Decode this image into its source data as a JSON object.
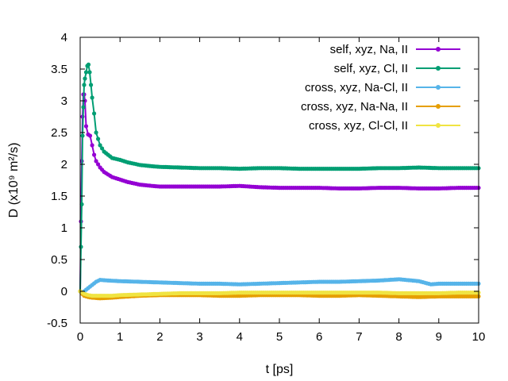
{
  "chart_data": {
    "type": "line",
    "xlabel": "t [ps]",
    "ylabel": "D (x10⁹ m²/s)",
    "xlim": [
      0,
      10
    ],
    "ylim": [
      -0.5,
      4
    ],
    "xticks": [
      "0",
      "1",
      "2",
      "3",
      "4",
      "5",
      "6",
      "7",
      "8",
      "9",
      "10"
    ],
    "yticks": [
      "-0.5",
      "0",
      "0.5",
      "1",
      "1.5",
      "2",
      "2.5",
      "3",
      "3.5",
      "4"
    ],
    "grid": false,
    "legend_position": "top-right",
    "series": [
      {
        "name": "self, xyz, Na, II",
        "color": "#9400d3",
        "x": [
          0,
          0.02,
          0.04,
          0.06,
          0.08,
          0.1,
          0.12,
          0.15,
          0.2,
          0.25,
          0.3,
          0.35,
          0.4,
          0.5,
          0.6,
          0.8,
          1.0,
          1.2,
          1.5,
          1.8,
          2.0,
          2.5,
          3.0,
          3.5,
          4.0,
          4.5,
          5.0,
          5.5,
          6.0,
          6.5,
          7.0,
          7.5,
          8.0,
          8.5,
          9.0,
          9.5,
          10.0
        ],
        "y": [
          0.0,
          1.1,
          2.05,
          2.75,
          3.1,
          3.1,
          3.0,
          2.6,
          2.47,
          2.45,
          2.3,
          2.15,
          2.05,
          1.95,
          1.88,
          1.8,
          1.76,
          1.72,
          1.68,
          1.66,
          1.65,
          1.65,
          1.65,
          1.65,
          1.66,
          1.64,
          1.63,
          1.63,
          1.63,
          1.62,
          1.62,
          1.63,
          1.63,
          1.62,
          1.62,
          1.63,
          1.63
        ]
      },
      {
        "name": "self, xyz, Cl, II",
        "color": "#009e73",
        "x": [
          0,
          0.02,
          0.04,
          0.06,
          0.08,
          0.1,
          0.12,
          0.15,
          0.18,
          0.21,
          0.24,
          0.27,
          0.3,
          0.35,
          0.4,
          0.5,
          0.6,
          0.7,
          0.8,
          1.0,
          1.2,
          1.5,
          1.8,
          2.0,
          2.5,
          3.0,
          3.5,
          4.0,
          4.5,
          5.0,
          5.5,
          6.0,
          6.5,
          7.0,
          7.5,
          8.0,
          8.5,
          9.0,
          9.5,
          10.0
        ],
        "y": [
          0.0,
          0.7,
          1.37,
          2.45,
          2.9,
          3.25,
          3.35,
          3.45,
          3.55,
          3.57,
          3.45,
          3.25,
          3.05,
          2.8,
          2.5,
          2.3,
          2.2,
          2.15,
          2.1,
          2.07,
          2.03,
          1.99,
          1.97,
          1.96,
          1.95,
          1.94,
          1.94,
          1.93,
          1.94,
          1.94,
          1.93,
          1.93,
          1.93,
          1.93,
          1.94,
          1.94,
          1.95,
          1.94,
          1.94,
          1.94
        ]
      },
      {
        "name": "cross, xyz, Na-Cl, II",
        "color": "#56b4e9",
        "x": [
          0,
          0.05,
          0.1,
          0.2,
          0.3,
          0.4,
          0.5,
          0.7,
          1.0,
          1.5,
          2.0,
          2.5,
          3.0,
          3.5,
          4.0,
          4.5,
          5.0,
          5.5,
          6.0,
          6.5,
          7.0,
          7.5,
          8.0,
          8.5,
          8.8,
          9.0,
          9.5,
          10.0
        ],
        "y": [
          0.0,
          -0.02,
          0.0,
          0.05,
          0.1,
          0.15,
          0.18,
          0.17,
          0.16,
          0.15,
          0.14,
          0.13,
          0.12,
          0.12,
          0.11,
          0.12,
          0.13,
          0.14,
          0.15,
          0.15,
          0.16,
          0.17,
          0.19,
          0.16,
          0.11,
          0.12,
          0.12,
          0.12
        ]
      },
      {
        "name": "cross, xyz, Na-Na, II",
        "color": "#e69f00",
        "x": [
          0,
          0.05,
          0.1,
          0.2,
          0.3,
          0.5,
          0.8,
          1.0,
          1.5,
          2.0,
          2.5,
          3.0,
          3.5,
          4.0,
          4.5,
          5.0,
          5.5,
          6.0,
          6.5,
          7.0,
          7.5,
          8.0,
          8.5,
          9.0,
          9.5,
          10.0
        ],
        "y": [
          0.0,
          -0.04,
          -0.07,
          -0.09,
          -0.1,
          -0.11,
          -0.1,
          -0.09,
          -0.07,
          -0.06,
          -0.06,
          -0.06,
          -0.07,
          -0.07,
          -0.06,
          -0.06,
          -0.06,
          -0.07,
          -0.07,
          -0.06,
          -0.07,
          -0.08,
          -0.09,
          -0.08,
          -0.08,
          -0.08
        ]
      },
      {
        "name": "cross, xyz, Cl-Cl, II",
        "color": "#f0e442",
        "x": [
          0,
          0.05,
          0.1,
          0.2,
          0.3,
          0.5,
          0.8,
          1.0,
          1.5,
          2.0,
          2.5,
          3.0,
          3.5,
          4.0,
          4.5,
          5.0,
          5.5,
          6.0,
          6.5,
          7.0,
          7.5,
          8.0,
          8.5,
          9.0,
          9.5,
          10.0
        ],
        "y": [
          0.0,
          -0.02,
          -0.04,
          -0.06,
          -0.07,
          -0.07,
          -0.07,
          -0.06,
          -0.05,
          -0.04,
          -0.03,
          -0.03,
          -0.03,
          -0.02,
          -0.02,
          -0.02,
          -0.02,
          -0.02,
          -0.02,
          -0.02,
          -0.02,
          -0.03,
          -0.03,
          -0.03,
          -0.02,
          -0.02
        ]
      }
    ]
  }
}
